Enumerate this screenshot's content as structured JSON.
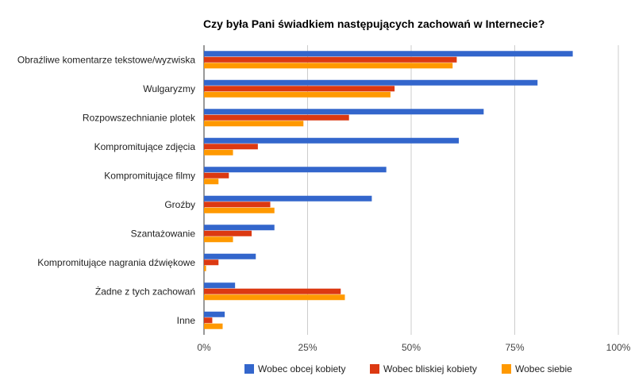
{
  "chart_data": {
    "type": "bar",
    "orientation": "horizontal",
    "title": "Czy była Pani świadkiem następujących zachowań w Internecie?",
    "categories": [
      "Obraźliwe komentarze tekstowe/wyzwiska",
      "Wulgaryzmy",
      "Rozpowszechnianie plotek",
      "Kompromitujące zdjęcia",
      "Kompromitujące filmy",
      "Groźby",
      "Szantażowanie",
      "Kompromitujące nagrania dźwiękowe",
      "Żadne z tych zachowań",
      "Inne"
    ],
    "series": [
      {
        "name": "Wobec obcej kobiety",
        "color": "#3366cc",
        "values": [
          89,
          80.5,
          67.5,
          61.5,
          44,
          40.5,
          17,
          12.5,
          7.5,
          5
        ]
      },
      {
        "name": "Wobec bliskiej kobiety",
        "color": "#dc3912",
        "values": [
          61,
          46,
          35,
          13,
          6,
          16,
          11.5,
          3.5,
          33,
          2
        ]
      },
      {
        "name": "Wobec siebie",
        "color": "#ff9900",
        "values": [
          60,
          45,
          24,
          7,
          3.5,
          17,
          7,
          0.5,
          34,
          4.5
        ]
      }
    ],
    "xticks": [
      "0%",
      "25%",
      "50%",
      "75%",
      "100%"
    ],
    "xlim": [
      0,
      100
    ],
    "grid": true,
    "legend": "bottom"
  }
}
